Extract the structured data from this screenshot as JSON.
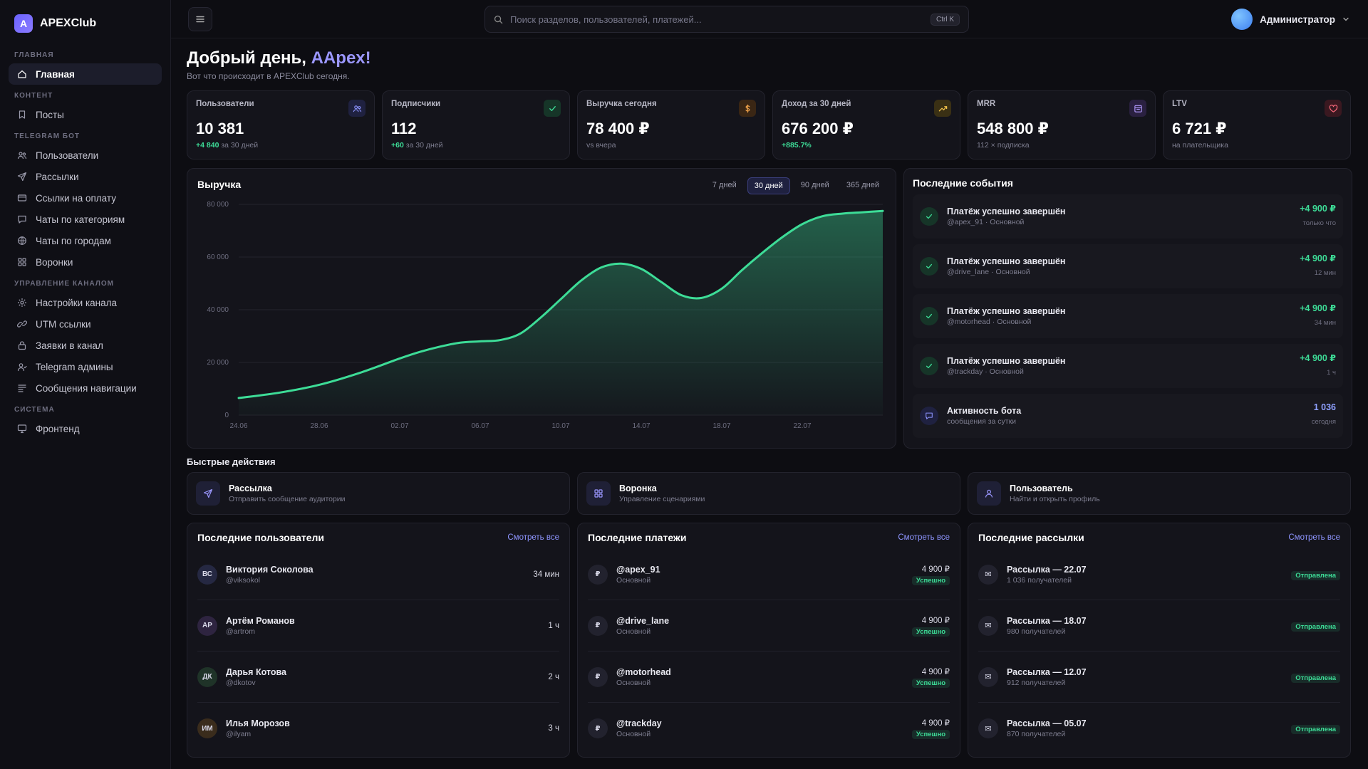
{
  "brand": {
    "logo_letter": "A",
    "name": "APEXClub"
  },
  "sidebar": {
    "sections": [
      {
        "title": "ГЛАВНАЯ",
        "items": [
          {
            "label": "Главная",
            "icon": "home-icon",
            "active": true
          }
        ]
      },
      {
        "title": "КОНТЕНТ",
        "items": [
          {
            "label": "Посты",
            "icon": "bookmark-icon"
          }
        ]
      },
      {
        "title": "TELEGRAM БОТ",
        "items": [
          {
            "label": "Пользователи",
            "icon": "users-icon"
          },
          {
            "label": "Рассылки",
            "icon": "send-icon"
          },
          {
            "label": "Ссылки на оплату",
            "icon": "card-icon"
          },
          {
            "label": "Чаты по категориям",
            "icon": "chat-icon"
          },
          {
            "label": "Чаты по городам",
            "icon": "globe-icon"
          },
          {
            "label": "Воронки",
            "icon": "grid-icon"
          }
        ]
      },
      {
        "title": "УПРАВЛЕНИЕ КАНАЛОМ",
        "items": [
          {
            "label": "Настройки канала",
            "icon": "gear-icon"
          },
          {
            "label": "UTM ссылки",
            "icon": "link-icon"
          },
          {
            "label": "Заявки в канал",
            "icon": "lock-icon"
          },
          {
            "label": "Telegram админы",
            "icon": "admins-icon"
          },
          {
            "label": "Сообщения навигации",
            "icon": "list-icon"
          }
        ]
      },
      {
        "title": "СИСТЕМА",
        "items": [
          {
            "label": "Фронтенд",
            "icon": "monitor-icon"
          }
        ]
      }
    ]
  },
  "topbar": {
    "search_placeholder": "Поиск разделов, пользователей, платежей...",
    "search_shortcut": "Ctrl K",
    "user_name": "Администратор"
  },
  "greeting": {
    "prefix": "Добрый день, ",
    "name": "AApex!",
    "subtitle": "Вот что происходит в APEXClub сегодня."
  },
  "stats": [
    {
      "label": "Пользователи",
      "value": "10 381",
      "delta": "+4 840",
      "note": " за 30 дней",
      "icon": "users-icon",
      "icon_color": "#8e95ff",
      "icon_bg": "#1f2140"
    },
    {
      "label": "Подписчики",
      "value": "112",
      "delta": "+60",
      "note": " за 30 дней",
      "icon": "check-icon",
      "icon_color": "#3ddc97",
      "icon_bg": "#163528"
    },
    {
      "label": "Выручка сегодня",
      "value": "78 400 ₽",
      "delta": "",
      "note": "vs вчера",
      "icon": "dollar-icon",
      "icon_color": "#f0a24a",
      "icon_bg": "#3a2614"
    },
    {
      "label": "Доход за 30 дней",
      "value": "676 200 ₽",
      "delta": "+885.7%",
      "note": "",
      "icon": "trend-icon",
      "icon_color": "#f0c04a",
      "icon_bg": "#3a3014"
    },
    {
      "label": "MRR",
      "value": "548 800 ₽",
      "delta": "",
      "note": "112 × подписка",
      "icon": "calendar-icon",
      "icon_color": "#b49cff",
      "icon_bg": "#2a2040"
    },
    {
      "label": "LTV",
      "value": "6 721 ₽",
      "delta": "",
      "note": "на плательщика",
      "icon": "heart-icon",
      "icon_color": "#ff6b7d",
      "icon_bg": "#3a1820"
    }
  ],
  "revenue": {
    "title": "Выручка",
    "ranges": [
      "7 дней",
      "30 дней",
      "90 дней",
      "365 дней"
    ],
    "active_range": "30 дней"
  },
  "chart_data": {
    "type": "area",
    "title": "Выручка",
    "x_ticks": [
      "24.06",
      "28.06",
      "02.07",
      "06.07",
      "10.07",
      "14.07",
      "18.07",
      "22.07"
    ],
    "y_ticks": [
      "0",
      "20 000",
      "40 000",
      "60 000",
      "80 000"
    ],
    "ylim": [
      0,
      80000
    ],
    "x_index_range": [
      0,
      32
    ],
    "points": [
      [
        0,
        6500
      ],
      [
        2,
        8500
      ],
      [
        4,
        11500
      ],
      [
        6,
        16000
      ],
      [
        8,
        21500
      ],
      [
        9,
        24000
      ],
      [
        10,
        26000
      ],
      [
        11,
        27500
      ],
      [
        12,
        28000
      ],
      [
        13,
        28500
      ],
      [
        14,
        31000
      ],
      [
        15,
        37000
      ],
      [
        16,
        44000
      ],
      [
        17,
        51000
      ],
      [
        18,
        56000
      ],
      [
        19,
        57500
      ],
      [
        20,
        55500
      ],
      [
        21,
        50500
      ],
      [
        22,
        45500
      ],
      [
        23,
        44500
      ],
      [
        24,
        48000
      ],
      [
        25,
        55000
      ],
      [
        26,
        61500
      ],
      [
        27,
        67500
      ],
      [
        28,
        72500
      ],
      [
        29,
        75500
      ],
      [
        30,
        76500
      ],
      [
        31,
        77000
      ],
      [
        32,
        77500
      ]
    ],
    "color": "#3ddc97",
    "grid": true
  },
  "events": {
    "title": "Последние события",
    "items": [
      {
        "title": "Платёж успешно завершён",
        "sub": "@apex_91 · Основной",
        "amount": "+4 900 ₽",
        "time": "только что",
        "icon": "check-icon",
        "kind": "payment"
      },
      {
        "title": "Платёж успешно завершён",
        "sub": "@drive_lane · Основной",
        "amount": "+4 900 ₽",
        "time": "12 мин",
        "icon": "check-icon",
        "kind": "payment"
      },
      {
        "title": "Платёж успешно завершён",
        "sub": "@motorhead · Основной",
        "amount": "+4 900 ₽",
        "time": "34 мин",
        "icon": "check-icon",
        "kind": "payment"
      },
      {
        "title": "Платёж успешно завершён",
        "sub": "@trackday · Основной",
        "amount": "+4 900 ₽",
        "time": "1 ч",
        "icon": "check-icon",
        "kind": "payment"
      },
      {
        "title": "Активность бота",
        "sub": "сообщения за сутки",
        "amount": "1 036",
        "time": "сегодня",
        "icon": "chat-icon",
        "kind": "bot"
      }
    ]
  },
  "quick_actions": {
    "title": "Быстрые действия",
    "items": [
      {
        "label": "Рассылка",
        "sub": "Отправить сообщение аудитории",
        "icon": "send-icon"
      },
      {
        "label": "Воронка",
        "sub": "Управление сценариями",
        "icon": "grid-icon"
      },
      {
        "label": "Пользователь",
        "sub": "Найти и открыть профиль",
        "icon": "user-icon"
      }
    ]
  },
  "lists": {
    "see_all": "Смотреть все",
    "users": {
      "title": "Последние пользователи",
      "items": [
        {
          "initials": "ВС",
          "name": "Виктория Соколова",
          "handle": "@viksokol",
          "time": "34 мин",
          "bg": "#252842"
        },
        {
          "initials": "АР",
          "name": "Артём Романов",
          "handle": "@artrom",
          "time": "1 ч",
          "bg": "#2e2440"
        },
        {
          "initials": "ДК",
          "name": "Дарья Котова",
          "handle": "@dkotov",
          "time": "2 ч",
          "bg": "#1f3328"
        },
        {
          "initials": "ИМ",
          "name": "Илья Морозов",
          "handle": "@ilyam",
          "time": "3 ч",
          "bg": "#3a2c1c"
        }
      ]
    },
    "payments": {
      "title": "Последние платежи",
      "items": [
        {
          "icon": "₽",
          "name": "@apex_91",
          "plan": "Основной",
          "amount": "4 900 ₽",
          "status": "Успешно"
        },
        {
          "icon": "₽",
          "name": "@drive_lane",
          "plan": "Основной",
          "amount": "4 900 ₽",
          "status": "Успешно"
        },
        {
          "icon": "₽",
          "name": "@motorhead",
          "plan": "Основной",
          "amount": "4 900 ₽",
          "status": "Успешно"
        },
        {
          "icon": "₽",
          "name": "@trackday",
          "plan": "Основной",
          "amount": "4 900 ₽",
          "status": "Успешно"
        }
      ]
    },
    "broadcasts": {
      "title": "Последние рассылки",
      "items": [
        {
          "icon": "✉",
          "name": "Рассылка — 22.07",
          "sub": "1 036 получателей",
          "status": "Отправлена"
        },
        {
          "icon": "✉",
          "name": "Рассылка — 18.07",
          "sub": "980 получателей",
          "status": "Отправлена"
        },
        {
          "icon": "✉",
          "name": "Рассылка — 12.07",
          "sub": "912 получателей",
          "status": "Отправлена"
        },
        {
          "icon": "✉",
          "name": "Рассылка — 05.07",
          "sub": "870 получателей",
          "status": "Отправлена"
        }
      ]
    }
  }
}
